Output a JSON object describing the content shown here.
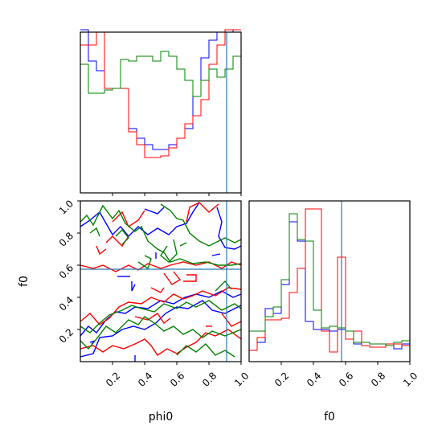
{
  "chart_data": {
    "type": "corner",
    "parameters": [
      "phi0",
      "f0"
    ],
    "range": [
      0.0,
      1.0
    ],
    "tick_values": [
      0.2,
      0.4,
      0.6,
      0.8,
      1.0
    ],
    "tick_labels": [
      "0.2",
      "0.4",
      "0.6",
      "0.8",
      "1.0"
    ],
    "truth": {
      "phi0": 0.91,
      "f0": 0.575
    },
    "colors": {
      "blue": "#0000ff",
      "red": "#ff0000",
      "green": "#008000",
      "truth": "#2a7ab0"
    },
    "hist_bins": [
      0.0,
      0.05,
      0.1,
      0.15,
      0.2,
      0.25,
      0.3,
      0.35,
      0.4,
      0.45,
      0.5,
      0.55,
      0.6,
      0.65,
      0.7,
      0.75,
      0.8,
      0.85,
      0.9,
      0.95,
      1.0
    ],
    "hist_phi0": {
      "blue": [
        1.05,
        0.82,
        0.76,
        0.65,
        0.65,
        0.65,
        0.4,
        0.34,
        0.3,
        0.27,
        0.27,
        0.3,
        0.34,
        0.4,
        0.6,
        0.84,
        0.95,
        1.0,
        1.0,
        1.05
      ],
      "red": [
        0.92,
        0.92,
        1.0,
        0.65,
        0.65,
        0.65,
        0.38,
        0.3,
        0.22,
        0.22,
        0.23,
        0.28,
        0.34,
        0.43,
        0.48,
        0.58,
        0.8,
        0.92,
        1.05,
        1.05
      ],
      "green": [
        0.8,
        0.62,
        0.62,
        0.64,
        0.65,
        0.83,
        0.82,
        0.85,
        0.85,
        0.82,
        0.88,
        0.85,
        0.77,
        0.7,
        0.6,
        0.7,
        0.77,
        0.72,
        0.77,
        0.85
      ]
    },
    "hist_f0": {
      "blue": [
        0.07,
        0.12,
        0.33,
        0.3,
        0.48,
        0.87,
        0.75,
        0.25,
        0.2,
        0.2,
        0.19,
        0.2,
        0.14,
        0.11,
        0.12,
        0.11,
        0.11,
        0.1,
        0.08,
        0.11
      ],
      "red": [
        0.07,
        0.15,
        0.26,
        0.26,
        0.27,
        0.43,
        0.58,
        0.95,
        0.95,
        0.19,
        0.06,
        0.65,
        0.14,
        0.19,
        0.1,
        0.09,
        0.09,
        0.11,
        0.11,
        0.1
      ],
      "green": [
        0.19,
        0.19,
        0.28,
        0.34,
        0.51,
        0.92,
        0.76,
        0.75,
        0.32,
        0.21,
        0.22,
        0.21,
        0.19,
        0.12,
        0.12,
        0.11,
        0.11,
        0.1,
        0.12,
        0.13
      ]
    },
    "contours": {
      "blue": [
        [
          [
            0.0,
            0.03
          ],
          [
            0.08,
            0.05
          ],
          [
            0.12,
            0.15
          ],
          [
            0.2,
            0.16
          ],
          [
            0.26,
            0.2
          ],
          [
            0.33,
            0.22
          ],
          [
            0.4,
            0.2
          ],
          [
            0.47,
            0.24
          ],
          [
            0.53,
            0.3
          ],
          [
            0.6,
            0.34
          ],
          [
            0.67,
            0.33
          ],
          [
            0.76,
            0.38
          ],
          [
            0.82,
            0.32
          ],
          [
            0.9,
            0.3
          ],
          [
            1.0,
            0.35
          ]
        ],
        [
          [
            0.0,
            0.16
          ],
          [
            0.05,
            0.22
          ],
          [
            0.1,
            0.18
          ],
          [
            0.16,
            0.26
          ],
          [
            0.22,
            0.31
          ],
          [
            0.28,
            0.3
          ],
          [
            0.34,
            0.34
          ],
          [
            0.42,
            0.33
          ],
          [
            0.5,
            0.38
          ],
          [
            0.58,
            0.36
          ],
          [
            0.65,
            0.4
          ],
          [
            0.72,
            0.42
          ],
          [
            0.8,
            0.4
          ],
          [
            0.88,
            0.44
          ],
          [
            0.95,
            0.4
          ],
          [
            1.0,
            0.42
          ]
        ],
        [
          [
            0.0,
            0.84
          ],
          [
            0.06,
            0.88
          ],
          [
            0.12,
            0.93
          ],
          [
            0.16,
            0.86
          ],
          [
            0.2,
            0.79
          ],
          [
            0.25,
            0.84
          ],
          [
            0.3,
            0.78
          ],
          [
            0.36,
            0.84
          ],
          [
            0.42,
            0.79
          ],
          [
            0.48,
            0.83
          ],
          [
            0.55,
            0.79
          ],
          [
            0.6,
            0.84
          ],
          [
            0.66,
            0.86
          ],
          [
            0.7,
            0.93
          ],
          [
            0.74,
            0.99
          ]
        ],
        [
          [
            0.85,
            0.96
          ],
          [
            0.88,
            0.87
          ],
          [
            0.86,
            0.78
          ],
          [
            0.9,
            0.71
          ],
          [
            0.96,
            0.7
          ],
          [
            1.0,
            0.72
          ]
        ],
        [
          [
            0.82,
            0.66
          ],
          [
            0.87,
            0.67
          ]
        ],
        [
          [
            0.23,
            0.53
          ],
          [
            0.31,
            0.53
          ]
        ],
        [
          [
            0.32,
            0.5
          ],
          [
            0.32,
            0.44
          ],
          [
            0.34,
            0.48
          ]
        ],
        [
          [
            0.47,
            0.68
          ],
          [
            0.47,
            0.64
          ]
        ],
        [
          [
            0.34,
            0.04
          ],
          [
            0.34,
            0.0
          ]
        ],
        [
          [
            0.4,
            0.95
          ],
          [
            0.48,
            0.92
          ],
          [
            0.52,
            0.96
          ]
        ],
        [
          [
            0.06,
            0.12
          ],
          [
            0.09,
            0.13
          ],
          [
            0.07,
            0.11
          ]
        ]
      ],
      "red": [
        [
          [
            0.0,
            0.08
          ],
          [
            0.08,
            0.1
          ],
          [
            0.14,
            0.06
          ],
          [
            0.2,
            0.1
          ],
          [
            0.27,
            0.08
          ],
          [
            0.34,
            0.11
          ],
          [
            0.4,
            0.14
          ],
          [
            0.44,
            0.1
          ],
          [
            0.48,
            0.04
          ],
          [
            0.54,
            0.08
          ],
          [
            0.6,
            0.05
          ],
          [
            0.66,
            0.09
          ],
          [
            0.72,
            0.12
          ],
          [
            0.78,
            0.18
          ],
          [
            0.84,
            0.16
          ],
          [
            0.92,
            0.2
          ],
          [
            1.0,
            0.14
          ]
        ],
        [
          [
            0.0,
            0.25
          ],
          [
            0.06,
            0.3
          ],
          [
            0.12,
            0.23
          ],
          [
            0.18,
            0.27
          ],
          [
            0.24,
            0.34
          ],
          [
            0.3,
            0.37
          ],
          [
            0.38,
            0.36
          ],
          [
            0.44,
            0.4
          ],
          [
            0.52,
            0.37
          ],
          [
            0.58,
            0.42
          ],
          [
            0.64,
            0.39
          ],
          [
            0.7,
            0.41
          ],
          [
            0.76,
            0.44
          ],
          [
            0.84,
            0.41
          ],
          [
            0.92,
            0.46
          ],
          [
            1.0,
            0.45
          ]
        ],
        [
          [
            0.0,
            0.6
          ],
          [
            0.08,
            0.58
          ],
          [
            0.14,
            0.6
          ],
          [
            0.22,
            0.56
          ],
          [
            0.3,
            0.6
          ],
          [
            0.36,
            0.57
          ],
          [
            0.42,
            0.61
          ],
          [
            0.5,
            0.58
          ],
          [
            0.56,
            0.6
          ],
          [
            0.64,
            0.62
          ],
          [
            0.72,
            0.6
          ],
          [
            0.8,
            0.62
          ],
          [
            0.88,
            0.58
          ],
          [
            0.94,
            0.62
          ],
          [
            1.0,
            0.6
          ]
        ],
        [
          [
            0.52,
            0.55
          ],
          [
            0.57,
            0.48
          ],
          [
            0.62,
            0.51
          ],
          [
            0.58,
            0.56
          ]
        ],
        [
          [
            0.64,
            0.5
          ],
          [
            0.72,
            0.5
          ],
          [
            0.72,
            0.54
          ],
          [
            0.66,
            0.54
          ]
        ],
        [
          [
            0.2,
            0.87
          ],
          [
            0.26,
            0.93
          ],
          [
            0.3,
            0.84
          ],
          [
            0.36,
            0.88
          ],
          [
            0.4,
            0.94
          ]
        ],
        [
          [
            0.66,
            0.87
          ],
          [
            0.68,
            0.96
          ],
          [
            0.74,
            0.99
          ],
          [
            0.8,
            0.93
          ],
          [
            0.86,
            0.98
          ]
        ],
        [
          [
            0.16,
            0.74
          ],
          [
            0.2,
            0.78
          ],
          [
            0.26,
            0.72
          ],
          [
            0.3,
            0.78
          ]
        ],
        [
          [
            0.1,
            0.72
          ],
          [
            0.12,
            0.67
          ],
          [
            0.16,
            0.7
          ]
        ],
        [
          [
            0.88,
            0.3
          ],
          [
            0.94,
            0.22
          ],
          [
            1.0,
            0.25
          ]
        ],
        [
          [
            0.34,
            0.28
          ],
          [
            0.42,
            0.26
          ],
          [
            0.48,
            0.3
          ],
          [
            0.52,
            0.24
          ],
          [
            0.56,
            0.27
          ]
        ],
        [
          [
            0.78,
            0.22
          ],
          [
            0.82,
            0.22
          ]
        ],
        [
          [
            0.44,
            0.46
          ],
          [
            0.5,
            0.43
          ],
          [
            0.52,
            0.46
          ]
        ]
      ],
      "green": [
        [
          [
            0.0,
            0.13
          ],
          [
            0.05,
            0.08
          ],
          [
            0.1,
            0.14
          ],
          [
            0.16,
            0.22
          ],
          [
            0.22,
            0.18
          ],
          [
            0.3,
            0.26
          ],
          [
            0.36,
            0.23
          ],
          [
            0.4,
            0.28
          ],
          [
            0.46,
            0.24
          ],
          [
            0.52,
            0.19
          ],
          [
            0.58,
            0.22
          ],
          [
            0.64,
            0.17
          ],
          [
            0.7,
            0.2
          ],
          [
            0.76,
            0.15
          ],
          [
            0.82,
            0.19
          ],
          [
            0.9,
            0.16
          ],
          [
            1.0,
            0.2
          ]
        ],
        [
          [
            0.0,
            0.22
          ],
          [
            0.06,
            0.18
          ],
          [
            0.12,
            0.24
          ],
          [
            0.18,
            0.29
          ],
          [
            0.26,
            0.32
          ],
          [
            0.32,
            0.35
          ],
          [
            0.38,
            0.33
          ],
          [
            0.46,
            0.31
          ],
          [
            0.52,
            0.36
          ],
          [
            0.6,
            0.33
          ],
          [
            0.66,
            0.37
          ],
          [
            0.72,
            0.34
          ],
          [
            0.8,
            0.38
          ],
          [
            0.88,
            0.32
          ],
          [
            0.96,
            0.36
          ],
          [
            1.0,
            0.33
          ]
        ],
        [
          [
            0.0,
            0.87
          ],
          [
            0.04,
            0.91
          ],
          [
            0.08,
            0.85
          ],
          [
            0.14,
            0.97
          ],
          [
            0.2,
            0.89
          ],
          [
            0.24,
            0.94
          ],
          [
            0.28,
            0.86
          ],
          [
            0.34,
            0.81
          ],
          [
            0.38,
            0.84
          ],
          [
            0.42,
            0.75
          ],
          [
            0.48,
            0.7
          ],
          [
            0.52,
            0.68
          ],
          [
            0.56,
            0.62
          ],
          [
            0.62,
            0.64
          ],
          [
            0.7,
            0.61
          ],
          [
            0.78,
            0.62
          ],
          [
            0.86,
            0.6
          ],
          [
            0.94,
            0.6
          ],
          [
            1.0,
            0.61
          ]
        ],
        [
          [
            0.5,
            0.98
          ],
          [
            0.56,
            0.94
          ],
          [
            0.6,
            0.89
          ],
          [
            0.64,
            0.88
          ],
          [
            0.68,
            0.8
          ],
          [
            0.74,
            0.75
          ],
          [
            0.8,
            0.72
          ],
          [
            0.84,
            0.74
          ],
          [
            0.9,
            0.77
          ],
          [
            0.96,
            0.74
          ],
          [
            1.0,
            0.76
          ]
        ],
        [
          [
            0.58,
            0.76
          ],
          [
            0.6,
            0.67
          ],
          [
            0.55,
            0.62
          ],
          [
            0.5,
            0.66
          ],
          [
            0.54,
            0.72
          ]
        ],
        [
          [
            0.22,
            0.78
          ],
          [
            0.26,
            0.82
          ],
          [
            0.3,
            0.77
          ],
          [
            0.26,
            0.73
          ]
        ],
        [
          [
            0.62,
            0.72
          ],
          [
            0.66,
            0.74
          ]
        ],
        [
          [
            0.36,
            0.62
          ],
          [
            0.42,
            0.58
          ],
          [
            0.44,
            0.64
          ],
          [
            0.4,
            0.66
          ]
        ],
        [
          [
            0.6,
            0.04
          ],
          [
            0.66,
            0.1
          ],
          [
            0.72,
            0.06
          ],
          [
            0.78,
            0.11
          ],
          [
            0.84,
            0.04
          ],
          [
            0.9,
            0.07
          ],
          [
            0.96,
            0.03
          ]
        ],
        [
          [
            0.84,
            0.44
          ],
          [
            0.9,
            0.5
          ],
          [
            0.94,
            0.45
          ]
        ],
        [
          [
            0.06,
            0.8
          ],
          [
            0.1,
            0.83
          ],
          [
            0.12,
            0.78
          ]
        ]
      ]
    },
    "xlabels": {
      "phi0": "phi0",
      "f0": "f0"
    },
    "ylabel": "f0"
  }
}
